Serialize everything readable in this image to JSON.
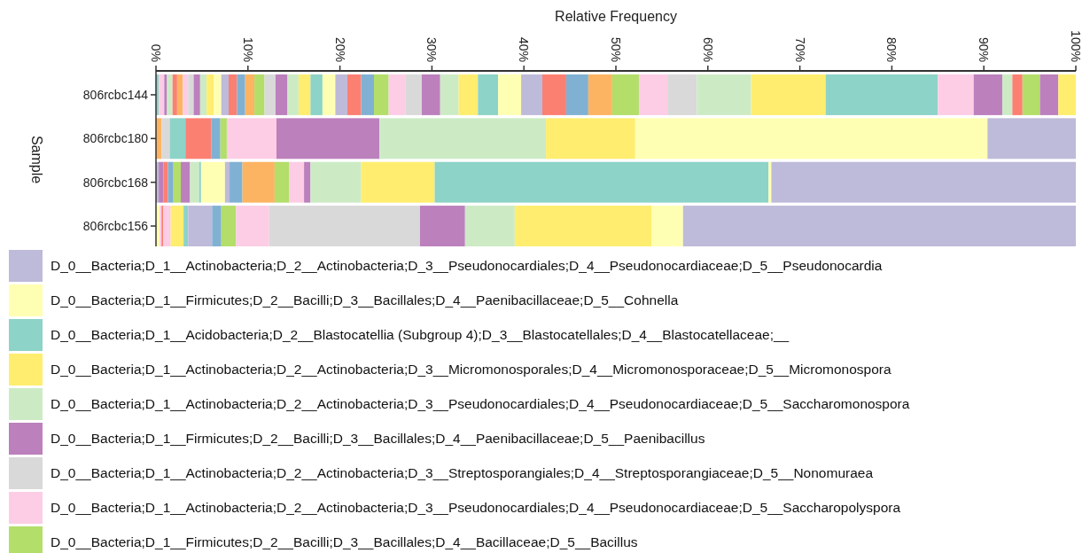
{
  "chart_data": {
    "type": "bar",
    "orientation": "horizontal",
    "stacked": true,
    "xlabel": "Relative Frequency",
    "ylabel": "Sample",
    "categories": [
      "806rcbc144",
      "806rcbc180",
      "806rcbc168",
      "806rcbc156"
    ],
    "xlim": [
      0,
      100
    ],
    "xticks": [
      {
        "value": 0,
        "label": "0%"
      },
      {
        "value": 10,
        "label": "10%"
      },
      {
        "value": 20,
        "label": "20%"
      },
      {
        "value": 30,
        "label": "30%"
      },
      {
        "value": 40,
        "label": "40%"
      },
      {
        "value": 50,
        "label": "50%"
      },
      {
        "value": 60,
        "label": "60%"
      },
      {
        "value": 70,
        "label": "70%"
      },
      {
        "value": 80,
        "label": "80%"
      },
      {
        "value": 90,
        "label": "90%"
      },
      {
        "value": 100,
        "label": "100%"
      }
    ],
    "legend": "bottom",
    "grid": false,
    "series": [
      {
        "color": "#8dd3c7",
        "values": [
          0.3,
          null,
          null,
          null
        ]
      },
      {
        "color": "#fccde5",
        "values": [
          0.6,
          null,
          null,
          null
        ]
      },
      {
        "color": "#bc80bd",
        "values": [
          0.3,
          null,
          null,
          null
        ]
      },
      {
        "color": "#ccebc5",
        "values": [
          0.6,
          null,
          null,
          null
        ]
      },
      {
        "color": "#fb8072",
        "values": [
          0.5,
          null,
          null,
          null
        ]
      },
      {
        "color": "#fdb462",
        "values": [
          0.6,
          null,
          null,
          null
        ]
      },
      {
        "color": "#fccde5",
        "values": [
          0.6,
          null,
          null,
          null
        ]
      },
      {
        "color": "#d9d9d9",
        "values": [
          0.6,
          null,
          null,
          null
        ]
      },
      {
        "color": "#bc80bd",
        "values": [
          0.7,
          null,
          null,
          null
        ]
      },
      {
        "color": "#ccebc5",
        "values": [
          0.7,
          null,
          null,
          null
        ]
      },
      {
        "color": "#ffed6f",
        "values": [
          0.8,
          null,
          null,
          null
        ]
      },
      {
        "color": "#ffffb3",
        "values": [
          0.8,
          null,
          null,
          null
        ]
      },
      {
        "color": "#bebada",
        "values": [
          0.8,
          null,
          null,
          null
        ]
      },
      {
        "color": "#fb8072",
        "values": [
          0.9,
          null,
          null,
          null
        ]
      },
      {
        "color": "#80b1d3",
        "values": [
          0.9,
          null,
          null,
          null
        ]
      },
      {
        "color": "#fdb462",
        "values": [
          1.0,
          null,
          null,
          null
        ]
      },
      {
        "color": "#b3de69",
        "values": [
          1.1,
          null,
          null,
          null
        ]
      },
      {
        "color": "#d9d9d9",
        "values": [
          1.2,
          null,
          null,
          null
        ]
      },
      {
        "color": "#bc80bd",
        "values": [
          1.3,
          null,
          null,
          null
        ]
      },
      {
        "color": "#ccebc5",
        "values": [
          1.2,
          null,
          null,
          null
        ]
      },
      {
        "color": "#ffed6f",
        "values": [
          1.3,
          null,
          null,
          null
        ]
      },
      {
        "color": "#8dd3c7",
        "values": [
          1.3,
          null,
          null,
          null
        ]
      },
      {
        "color": "#ffffb3",
        "values": [
          1.4,
          null,
          null,
          null
        ]
      },
      {
        "color": "#bebada",
        "values": [
          1.3,
          null,
          null,
          null
        ]
      },
      {
        "color": "#fb8072",
        "values": [
          1.5,
          null,
          null,
          null
        ]
      },
      {
        "color": "#80b1d3",
        "values": [
          1.4,
          null,
          null,
          null
        ]
      },
      {
        "color": "#b3de69",
        "values": [
          1.6,
          null,
          null,
          null
        ]
      },
      {
        "color": "#fccde5",
        "values": [
          1.8,
          null,
          null,
          null
        ]
      },
      {
        "color": "#d9d9d9",
        "values": [
          1.8,
          null,
          null,
          null
        ]
      },
      {
        "color": "#bc80bd",
        "values": [
          2.0,
          null,
          null,
          null
        ]
      },
      {
        "color": "#ccebc5",
        "values": [
          2.0,
          null,
          null,
          null
        ]
      },
      {
        "color": "#ffed6f",
        "values": [
          2.1,
          null,
          null,
          null
        ]
      },
      {
        "color": "#8dd3c7",
        "values": [
          2.2,
          null,
          null,
          null
        ]
      },
      {
        "color": "#ffffb3",
        "values": [
          2.5,
          null,
          null,
          null
        ]
      },
      {
        "color": "#bebada",
        "values": [
          2.3,
          null,
          null,
          null
        ]
      },
      {
        "color": "#fb8072",
        "values": [
          2.6,
          null,
          null,
          null
        ]
      },
      {
        "color": "#80b1d3",
        "values": [
          2.4,
          null,
          null,
          null
        ]
      },
      {
        "color": "#fdb462",
        "values": [
          2.6,
          null,
          null,
          null
        ]
      },
      {
        "color": "#b3de69",
        "values": [
          2.9,
          null,
          null,
          null
        ]
      },
      {
        "color": "#fccde5",
        "values": [
          3.1,
          null,
          null,
          null
        ]
      },
      {
        "color": "#d9d9d9",
        "values": [
          3.2,
          null,
          null,
          null
        ]
      },
      {
        "color": "#ccebc5",
        "values": [
          5.9,
          null,
          null,
          null
        ]
      },
      {
        "color": "#ffed6f",
        "values": [
          8.1,
          null,
          null,
          null
        ]
      },
      {
        "color": "#8dd3c7",
        "values": [
          12.2,
          null,
          null,
          null
        ]
      },
      {
        "color": "#fccde5",
        "values": [
          3.9,
          null,
          null,
          null
        ]
      },
      {
        "color": "#bc80bd",
        "values": [
          3.1,
          null,
          null,
          null
        ]
      },
      {
        "color": "#ccebc5",
        "values": [
          1.1,
          null,
          null,
          null
        ]
      },
      {
        "color": "#fb8072",
        "values": [
          1.1,
          null,
          null,
          null
        ]
      },
      {
        "color": "#fdb462",
        "values": [
          null,
          0.6,
          null,
          null
        ]
      },
      {
        "color": "#d9d9d9",
        "values": [
          null,
          0.9,
          null,
          null
        ]
      },
      {
        "color": "#8dd3c7",
        "values": [
          null,
          1.7,
          null,
          null
        ]
      },
      {
        "color": "#fb8072",
        "values": [
          null,
          2.8,
          null,
          null
        ]
      },
      {
        "color": "#80b1d3",
        "values": [
          null,
          1.0,
          null,
          null
        ]
      },
      {
        "color": "#bebada",
        "values": [
          null,
          null,
          0.3,
          null
        ]
      },
      {
        "color": "#bc80bd",
        "values": [
          null,
          null,
          0.5,
          null
        ]
      },
      {
        "color": "#fb8072",
        "values": [
          null,
          null,
          0.5,
          null
        ]
      },
      {
        "color": "#80b1d3",
        "values": [
          null,
          null,
          0.6,
          null
        ]
      },
      {
        "color": "#b3de69",
        "values": [
          null,
          null,
          0.8,
          null
        ]
      },
      {
        "color": "#bc80bd",
        "values": [
          null,
          null,
          1.0,
          null
        ]
      },
      {
        "color": "#ccebc5",
        "values": [
          null,
          null,
          1.0,
          null
        ]
      },
      {
        "color": "#8dd3c7",
        "values": [
          null,
          null,
          0.2,
          null
        ]
      },
      {
        "color": "#ffffb3",
        "values": [
          null,
          null,
          2.6,
          null
        ]
      },
      {
        "color": "#bebada",
        "values": [
          null,
          null,
          0.5,
          null
        ]
      },
      {
        "color": "#80b1d3",
        "values": [
          null,
          null,
          1.4,
          null
        ]
      },
      {
        "color": "#fdb462",
        "values": [
          null,
          null,
          3.5,
          null
        ]
      },
      {
        "color": "#ffffb3",
        "values": [
          null,
          null,
          null,
          0.4
        ]
      },
      {
        "color": "#fccde5",
        "values": [
          null,
          null,
          null,
          0.2
        ]
      },
      {
        "color": "#fb8072",
        "values": [
          null,
          null,
          null,
          0.2
        ]
      },
      {
        "color": "#fccde5",
        "values": [
          null,
          null,
          null,
          0.8
        ]
      },
      {
        "color": "#ffed6f",
        "values": [
          null,
          null,
          null,
          1.4
        ]
      },
      {
        "color": "#8dd3c7",
        "values": [
          null,
          null,
          null,
          0.5
        ]
      },
      {
        "color": "#bebada",
        "values": [
          null,
          null,
          null,
          2.6
        ]
      },
      {
        "color": "#80b1d3",
        "values": [
          null,
          null,
          null,
          1.0
        ]
      },
      {
        "name": "D_0__Bacteria;D_1__Firmicutes;D_2__Bacilli;D_3__Bacillales;D_4__Bacillaceae;D_5__Bacillus",
        "color": "#b3de69",
        "values": [
          1.9,
          0.7,
          1.6,
          1.6
        ]
      },
      {
        "name": "D_0__Bacteria;D_1__Actinobacteria;D_2__Actinobacteria;D_3__Pseudonocardiales;D_4__Pseudonocardiaceae;D_5__Saccharopolyspora",
        "color": "#fccde5",
        "values": [
          0,
          5.4,
          1.6,
          3.6
        ]
      },
      {
        "name": "D_0__Bacteria;D_1__Actinobacteria;D_2__Actinobacteria;D_3__Streptosporangiales;D_4__Streptosporangiaceae;D_5__Nonomuraea",
        "color": "#d9d9d9",
        "values": [
          0,
          0,
          0,
          16.4
        ]
      },
      {
        "name": "D_0__Bacteria;D_1__Firmicutes;D_2__Bacilli;D_3__Bacillales;D_4__Paenibacillaceae;D_5__Paenibacillus",
        "color": "#bc80bd",
        "values": [
          2.0,
          11.2,
          0.7,
          4.9
        ]
      },
      {
        "name": "D_0__Bacteria;D_1__Actinobacteria;D_2__Actinobacteria;D_3__Pseudonocardiales;D_4__Pseudonocardiaceae;D_5__Saccharomonospora",
        "color": "#ccebc5",
        "values": [
          0,
          18.1,
          5.5,
          5.4
        ]
      },
      {
        "name": "D_0__Bacteria;D_1__Actinobacteria;D_2__Actinobacteria;D_3__Micromonosporales;D_4__Micromonosporaceae;D_5__Micromonospora",
        "color": "#ffed6f",
        "values": [
          1.9,
          9.7,
          8.0,
          14.9
        ]
      },
      {
        "name": "D_0__Bacteria;D_1__Acidobacteria;D_2__Blastocatellia (Subgroup 4);D_3__Blastocatellales;D_4__Blastocatellaceae;__",
        "color": "#8dd3c7",
        "values": [
          0,
          0,
          36.3,
          0
        ]
      },
      {
        "name": "D_0__Bacteria;D_1__Firmicutes;D_2__Bacilli;D_3__Bacillales;D_4__Paenibacillaceae;D_5__Cohnella",
        "color": "#ffffb3",
        "values": [
          0,
          38.3,
          0.3,
          3.4
        ]
      },
      {
        "name": "D_0__Bacteria;D_1__Actinobacteria;D_2__Actinobacteria;D_3__Pseudonocardiales;D_4__Pseudonocardiaceae;D_5__Pseudonocardia",
        "color": "#bebada",
        "values": [
          0,
          9.6,
          33.1,
          42.7
        ]
      }
    ]
  }
}
